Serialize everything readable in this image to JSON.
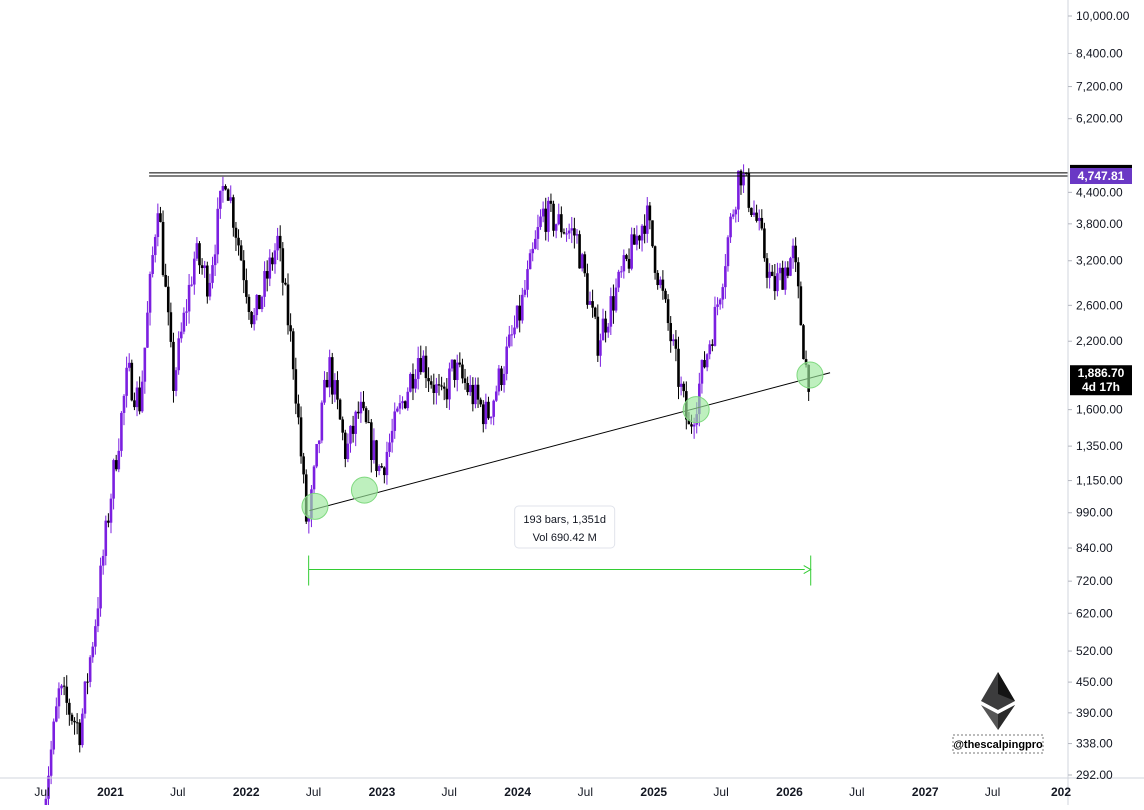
{
  "chart_data": {
    "type": "candlestick",
    "symbol_hint": "ETH",
    "y_scale": "log",
    "y_ticks": [
      "10,000.00",
      "8,400.00",
      "7,200.00",
      "6,200.00",
      "4,400.00",
      "3,800.00",
      "3,200.00",
      "2,600.00",
      "2,200.00",
      "1,600.00",
      "1,350.00",
      "1,150.00",
      "990.00",
      "840.00",
      "720.00",
      "620.00",
      "520.00",
      "450.00",
      "390.00",
      "338.00",
      "292.00"
    ],
    "x_ticks": [
      {
        "label": "Jul",
        "date": "2020-07-01",
        "year": false
      },
      {
        "label": "2021",
        "date": "2021-01-01",
        "year": true
      },
      {
        "label": "Jul",
        "date": "2021-07-01",
        "year": false
      },
      {
        "label": "2022",
        "date": "2022-01-01",
        "year": true
      },
      {
        "label": "Jul",
        "date": "2022-07-01",
        "year": false
      },
      {
        "label": "2023",
        "date": "2023-01-01",
        "year": true
      },
      {
        "label": "Jul",
        "date": "2023-07-01",
        "year": false
      },
      {
        "label": "2024",
        "date": "2024-01-01",
        "year": true
      },
      {
        "label": "Jul",
        "date": "2024-07-01",
        "year": false
      },
      {
        "label": "2025",
        "date": "2025-01-01",
        "year": true
      },
      {
        "label": "Jul",
        "date": "2025-07-01",
        "year": false
      },
      {
        "label": "2026",
        "date": "2026-01-01",
        "year": true
      },
      {
        "label": "Jul",
        "date": "2026-07-01",
        "year": false
      },
      {
        "label": "2027",
        "date": "2027-01-01",
        "year": true
      },
      {
        "label": "Jul",
        "date": "2027-07-01",
        "year": false
      },
      {
        "label": "202",
        "date": "2028-01-01",
        "year": true
      }
    ],
    "price_path": [
      {
        "date": "2020-07-01",
        "price": 230
      },
      {
        "date": "2020-08-20",
        "price": 430
      },
      {
        "date": "2020-10-15",
        "price": 360
      },
      {
        "date": "2020-11-25",
        "price": 600
      },
      {
        "date": "2021-01-10",
        "price": 1150
      },
      {
        "date": "2021-02-20",
        "price": 1900
      },
      {
        "date": "2021-03-25",
        "price": 1650
      },
      {
        "date": "2021-05-12",
        "price": 4300
      },
      {
        "date": "2021-06-22",
        "price": 1800
      },
      {
        "date": "2021-08-20",
        "price": 3300
      },
      {
        "date": "2021-09-25",
        "price": 2900
      },
      {
        "date": "2021-11-10",
        "price": 4817
      },
      {
        "date": "2022-01-24",
        "price": 2400
      },
      {
        "date": "2022-03-30",
        "price": 3500
      },
      {
        "date": "2022-05-12",
        "price": 2000
      },
      {
        "date": "2022-06-18",
        "price": 900
      },
      {
        "date": "2022-08-14",
        "price": 2000
      },
      {
        "date": "2022-09-30",
        "price": 1300
      },
      {
        "date": "2022-11-05",
        "price": 1600
      },
      {
        "date": "2022-12-31",
        "price": 1200
      },
      {
        "date": "2023-04-15",
        "price": 2100
      },
      {
        "date": "2023-06-15",
        "price": 1650
      },
      {
        "date": "2023-07-15",
        "price": 1950
      },
      {
        "date": "2023-10-15",
        "price": 1550
      },
      {
        "date": "2024-01-10",
        "price": 2500
      },
      {
        "date": "2024-03-12",
        "price": 4000
      },
      {
        "date": "2024-06-10",
        "price": 3600
      },
      {
        "date": "2024-08-05",
        "price": 2200
      },
      {
        "date": "2024-12-15",
        "price": 4000
      },
      {
        "date": "2025-04-09",
        "price": 1450
      },
      {
        "date": "2025-06-20",
        "price": 2500
      },
      {
        "date": "2025-08-24",
        "price": 4950
      },
      {
        "date": "2025-10-10",
        "price": 3800
      },
      {
        "date": "2025-11-20",
        "price": 2800
      },
      {
        "date": "2026-01-15",
        "price": 3300
      },
      {
        "date": "2026-02-20",
        "price": 1886.7
      }
    ],
    "resistance_lines": [
      {
        "price": 4817.06,
        "label": "4,817.06"
      },
      {
        "price": 4747.81,
        "label": "4,747.81"
      }
    ],
    "current_price": {
      "label": "1,886.70",
      "countdown": "4d 17h",
      "price": 1886.7
    },
    "support_trendline": {
      "start": {
        "date": "2022-06-20",
        "price": 1000
      },
      "end": {
        "date": "2026-04-20",
        "price": 1900
      }
    },
    "touch_points": [
      {
        "date": "2022-07-05",
        "price": 1020
      },
      {
        "date": "2022-11-15",
        "price": 1100
      },
      {
        "date": "2025-04-25",
        "price": 1600
      },
      {
        "date": "2026-02-25",
        "price": 1880
      }
    ],
    "date_range": {
      "start": "2022-06-18",
      "end": "2026-02-27",
      "price": 760,
      "info_line1": "193 bars, 1,351d",
      "info_line2": "Vol 690.42 M"
    },
    "colors": {
      "bull": "#7b1fe0",
      "bear": "#000000",
      "resistance": "#000000",
      "trendline": "#000000",
      "range": "#33cc33",
      "touch_fill": "#9be89b",
      "badge_dark": "#000000",
      "badge_purple": "#6a38c5",
      "axis": "#d1d4dc"
    }
  },
  "watermark": {
    "icon": "ethereum-diamond-icon",
    "handle": "@thescalpingpro"
  }
}
